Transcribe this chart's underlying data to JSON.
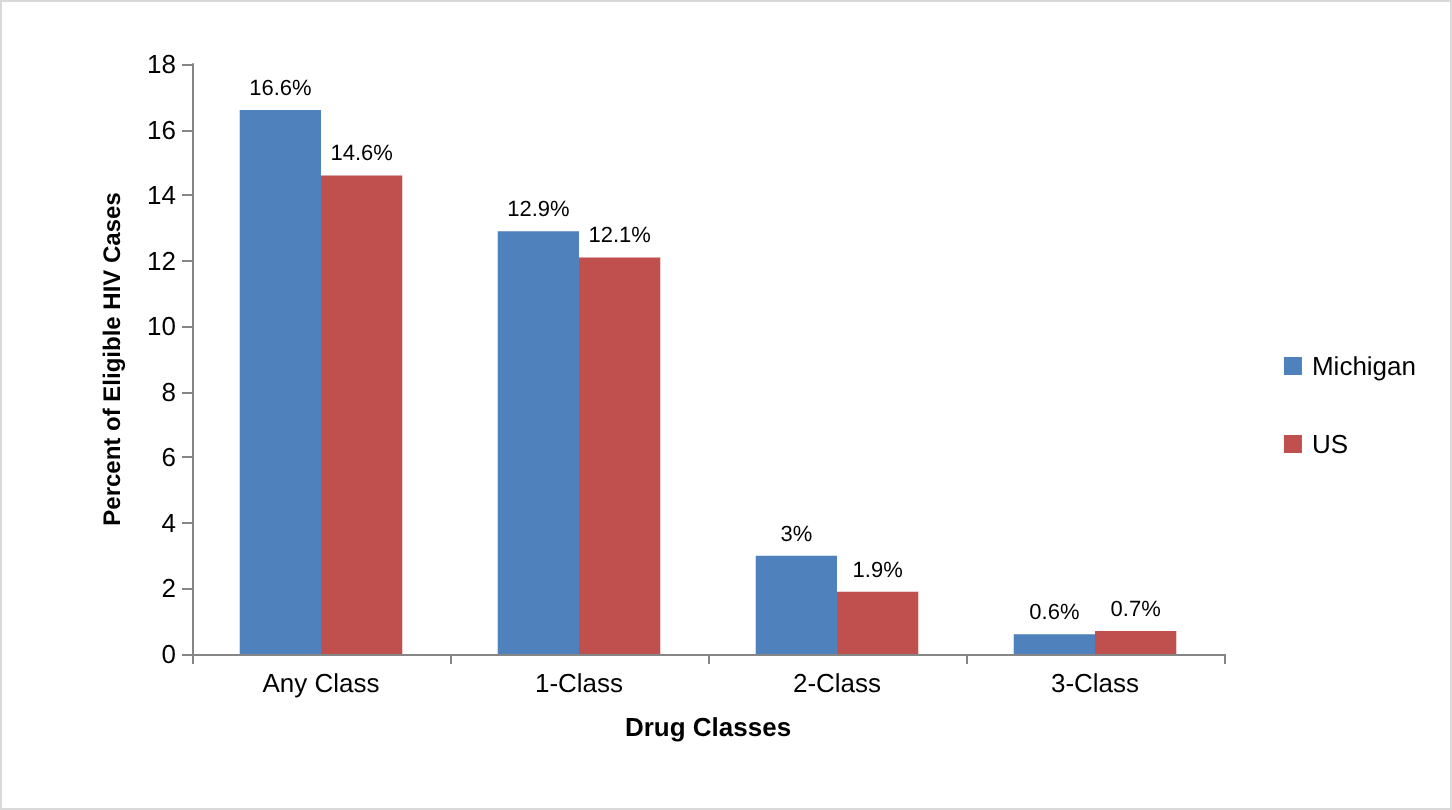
{
  "chart_data": {
    "type": "bar",
    "xlabel": "Drug Classes",
    "ylabel": "Percent of Eligible HIV Cases",
    "categories": [
      "Any Class",
      "1-Class",
      "2-Class",
      "3-Class"
    ],
    "series": [
      {
        "name": "Michigan",
        "color": "#4f81bd",
        "values": [
          16.6,
          12.9,
          3,
          0.6
        ],
        "value_labels": [
          "16.6%",
          "12.9%",
          "3%",
          "0.6%"
        ]
      },
      {
        "name": "US",
        "color": "#c0504d",
        "values": [
          14.6,
          12.1,
          1.9,
          0.7
        ],
        "value_labels": [
          "14.6%",
          "12.1%",
          "1.9%",
          "0.7%"
        ]
      }
    ],
    "ylim": [
      0,
      18
    ],
    "yticks": [
      0,
      2,
      4,
      6,
      8,
      10,
      12,
      14,
      16,
      18
    ],
    "grid": false,
    "legend": "right"
  }
}
